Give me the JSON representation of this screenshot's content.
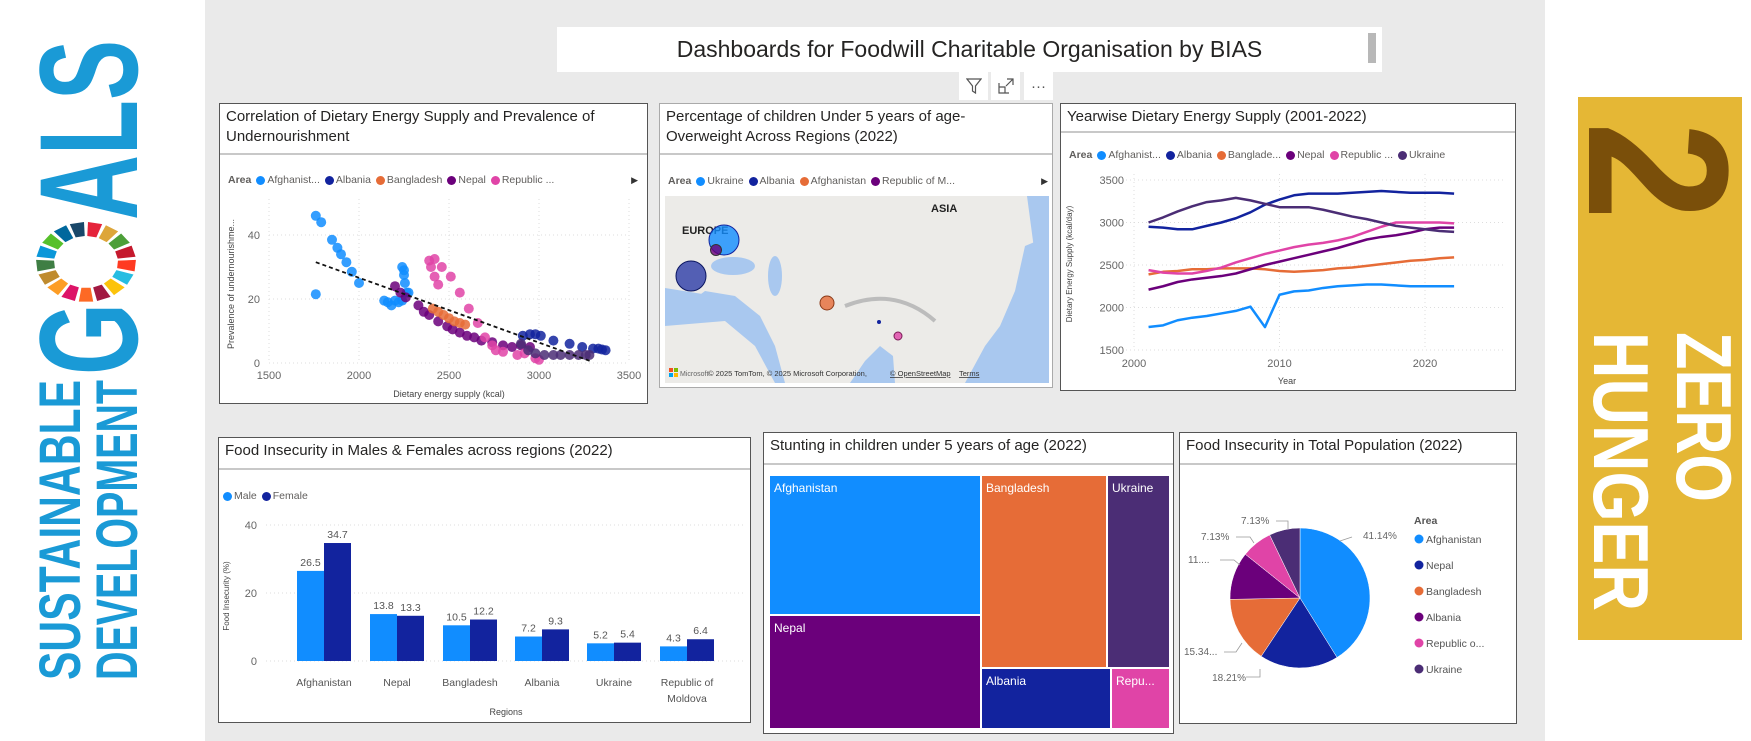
{
  "header": {
    "title": "Dashboards for Foodwill Charitable Organisation by BIAS"
  },
  "toolbar": {
    "filter_icon": "filter-icon",
    "focus_icon": "focus-mode-icon",
    "more_icon": "more-options-icon",
    "more_label": "···"
  },
  "branding": {
    "sdg_logo": {
      "line1": "SUSTAINABLE",
      "line2": "DEVELOPMENT",
      "word": "GOALS",
      "color": "#1A9AD6"
    },
    "goal_badge": {
      "number": "2",
      "line1": "ZERO",
      "line2": "HUNGER",
      "bg": "#E5B735",
      "number_color": "#7A4F0A"
    }
  },
  "colors": {
    "Afghanistan": "#118DFF",
    "Albania": "#12239E",
    "Bangladesh": "#E66C37",
    "Nepal": "#6B007B",
    "Republic of Moldova": "#E044A7",
    "Ukraine": "#4B2D75"
  },
  "scatter": {
    "title": "Correlation of Dietary Energy Supply and Prevalence of Undernourishment",
    "legend_title": "Area",
    "legend": [
      "Afghanist...",
      "Albania",
      "Bangladesh",
      "Nepal",
      "Republic ..."
    ],
    "chart_data": {
      "type": "scatter",
      "xlabel": "Dietary energy supply (kcal)",
      "ylabel": "Prevalence of undernourishme...",
      "xlim": [
        1500,
        3500
      ],
      "ylim": [
        0,
        48
      ],
      "xticks": [
        1500,
        2000,
        2500,
        3000,
        3500
      ],
      "yticks": [
        0,
        20,
        40
      ],
      "grid": true,
      "trendline": [
        [
          1760,
          31.5
        ],
        [
          3290,
          0.5
        ]
      ],
      "series": [
        {
          "area": "Afghanistan",
          "points": [
            [
              1760,
              46
            ],
            [
              1790,
              44
            ],
            [
              1850,
              38.5
            ],
            [
              1880,
              36
            ],
            [
              1900,
              34
            ],
            [
              1930,
              31.5
            ],
            [
              1960,
              28.5
            ],
            [
              2000,
              25
            ],
            [
              1760,
              21.5
            ],
            [
              2140,
              19.5
            ],
            [
              2160,
              19
            ],
            [
              2180,
              18
            ],
            [
              2200,
              19.5
            ],
            [
              2220,
              19
            ],
            [
              2240,
              30
            ],
            [
              2250,
              29
            ],
            [
              2250,
              27.5
            ],
            [
              2255,
              25
            ],
            [
              2265,
              22
            ],
            [
              2240,
              19.5
            ],
            [
              2275,
              22
            ]
          ]
        },
        {
          "area": "Nepal",
          "points": [
            [
              2200,
              24
            ],
            [
              2230,
              22
            ],
            [
              2260,
              20.5
            ],
            [
              2330,
              18
            ],
            [
              2360,
              16
            ],
            [
              2390,
              15
            ],
            [
              2440,
              13
            ],
            [
              2490,
              11.5
            ],
            [
              2520,
              10.5
            ],
            [
              2560,
              9.5
            ],
            [
              2600,
              8.5
            ],
            [
              2640,
              8
            ],
            [
              2680,
              7
            ],
            [
              2740,
              6.5
            ],
            [
              2800,
              5.5
            ],
            [
              2850,
              5
            ],
            [
              2900,
              5.5
            ],
            [
              2950,
              5
            ]
          ]
        },
        {
          "area": "Bangladesh",
          "points": [
            [
              2410,
              17
            ],
            [
              2440,
              16
            ],
            [
              2470,
              15
            ],
            [
              2500,
              14
            ],
            [
              2530,
              13
            ],
            [
              2560,
              12.5
            ],
            [
              2590,
              12
            ]
          ]
        },
        {
          "area": "Republic of Moldova",
          "points": [
            [
              2390,
              32
            ],
            [
              2420,
              32.5
            ],
            [
              2400,
              30
            ],
            [
              2420,
              27
            ],
            [
              2440,
              24.5
            ],
            [
              2460,
              30
            ],
            [
              2510,
              27
            ],
            [
              2560,
              22
            ],
            [
              2610,
              17
            ],
            [
              2660,
              12.5
            ],
            [
              2700,
              8
            ],
            [
              2740,
              5.5
            ],
            [
              2760,
              4
            ],
            [
              2800,
              3.5
            ],
            [
              2880,
              2.5
            ],
            [
              2920,
              3
            ],
            [
              2980,
              1.5
            ],
            [
              3000,
              1
            ]
          ]
        },
        {
          "area": "Albania",
          "points": [
            [
              2910,
              8.5
            ],
            [
              2950,
              9
            ],
            [
              2980,
              9
            ],
            [
              3010,
              8.5
            ],
            [
              3080,
              7
            ],
            [
              3170,
              6
            ],
            [
              3240,
              5
            ],
            [
              3300,
              4.5
            ],
            [
              3330,
              4.5
            ],
            [
              3350,
              4.2
            ],
            [
              3370,
              4
            ]
          ]
        },
        {
          "area": "Ukraine",
          "points": [
            [
              2900,
              6
            ],
            [
              2940,
              4
            ],
            [
              2980,
              3
            ],
            [
              3030,
              2.5
            ],
            [
              3080,
              2.5
            ],
            [
              3120,
              2.5
            ],
            [
              3170,
              2.5
            ],
            [
              3220,
              2.5
            ],
            [
              3260,
              2.5
            ],
            [
              3280,
              2.5
            ]
          ]
        }
      ]
    }
  },
  "map": {
    "title": "Percentage of children Under 5 years of age-Overweight Across Regions (2022)",
    "legend_title": "Area",
    "legend": [
      {
        "label": "Ukraine",
        "color": "#118DFF"
      },
      {
        "label": "Albania",
        "color": "#12239E"
      },
      {
        "label": "Afghanistan",
        "color": "#E66C37"
      },
      {
        "label": "Republic of M...",
        "color": "#6B007B"
      }
    ],
    "labels": {
      "europe": "EUROPE",
      "asia": "ASIA"
    },
    "attribution": "© 2025 TomTom, © 2025 Microsoft Corporation,",
    "osm_link": "© OpenStreetMap",
    "terms_link": "Terms",
    "ms_logo": "Microsoft"
  },
  "line": {
    "title": "Yearwise Dietary Energy Supply (2001-2022)",
    "legend_title": "Area",
    "legend": [
      "Afghanist...",
      "Albania",
      "Banglade...",
      "Nepal",
      "Republic ...",
      "Ukraine"
    ],
    "chart_data": {
      "type": "line",
      "xlabel": "Year",
      "ylabel": "Dietary Energy Supply (kcal/day)",
      "xlim": [
        2000,
        2024
      ],
      "ylim": [
        1500,
        3500
      ],
      "xticks": [
        2000,
        2010,
        2020
      ],
      "yticks": [
        1500,
        2000,
        2500,
        3000,
        3500
      ],
      "grid": true,
      "x": [
        2001,
        2002,
        2003,
        2004,
        2005,
        2006,
        2007,
        2008,
        2009,
        2010,
        2011,
        2012,
        2013,
        2014,
        2015,
        2016,
        2017,
        2018,
        2019,
        2020,
        2021,
        2022
      ],
      "series": [
        {
          "area": "Afghanistan",
          "values": [
            1770,
            1790,
            1850,
            1880,
            1900,
            1930,
            1960,
            2010,
            1770,
            2150,
            2190,
            2200,
            2230,
            2250,
            2260,
            2270,
            2270,
            2260,
            2250,
            2250,
            2250,
            2250
          ]
        },
        {
          "area": "Albania",
          "values": [
            2950,
            2940,
            2920,
            2920,
            2960,
            3000,
            3050,
            3120,
            3210,
            3270,
            3320,
            3340,
            3340,
            3340,
            3350,
            3360,
            3370,
            3360,
            3350,
            3350,
            3350,
            3340
          ]
        },
        {
          "area": "Bangladesh",
          "values": [
            2390,
            2420,
            2430,
            2450,
            2450,
            2460,
            2460,
            2460,
            2450,
            2430,
            2420,
            2430,
            2440,
            2460,
            2470,
            2490,
            2510,
            2530,
            2550,
            2560,
            2580,
            2590
          ]
        },
        {
          "area": "Nepal",
          "values": [
            2210,
            2250,
            2300,
            2330,
            2350,
            2370,
            2400,
            2450,
            2500,
            2540,
            2580,
            2620,
            2660,
            2700,
            2750,
            2800,
            2830,
            2850,
            2880,
            2920,
            2940,
            2940
          ]
        },
        {
          "area": "Republic of Moldova",
          "values": [
            2440,
            2410,
            2400,
            2400,
            2430,
            2470,
            2530,
            2580,
            2630,
            2670,
            2710,
            2740,
            2760,
            2790,
            2830,
            2890,
            2950,
            3000,
            3000,
            3000,
            3000,
            2990
          ]
        },
        {
          "area": "Ukraine",
          "values": [
            3000,
            3060,
            3130,
            3190,
            3240,
            3260,
            3290,
            3260,
            3220,
            3180,
            3180,
            3180,
            3150,
            3110,
            3070,
            3040,
            3000,
            2960,
            2940,
            2920,
            2900,
            2890
          ]
        }
      ]
    }
  },
  "bar": {
    "title": "Food Insecurity in Males & Females across regions (2022)",
    "chart_data": {
      "type": "bar",
      "xlabel": "Regions",
      "ylabel": "Food Insecurity (%)",
      "ylim": [
        0,
        40
      ],
      "yticks": [
        0,
        20,
        40
      ],
      "grid": true,
      "legend": "top-left",
      "categories": [
        "Afghanistan",
        "Nepal",
        "Bangladesh",
        "Albania",
        "Ukraine",
        "Republic of Moldova"
      ],
      "category_lines": [
        [
          "Afghanistan"
        ],
        [
          "Nepal"
        ],
        [
          "Bangladesh"
        ],
        [
          "Albania"
        ],
        [
          "Ukraine"
        ],
        [
          "Republic of",
          "Moldova"
        ]
      ],
      "series": [
        {
          "name": "Male",
          "color": "#118DFF",
          "values": [
            26.5,
            13.8,
            10.5,
            7.2,
            5.2,
            4.3
          ],
          "labels": [
            "26.5",
            "13.8",
            "10.5",
            "7.2",
            "5.2",
            "4.3"
          ]
        },
        {
          "name": "Female",
          "color": "#12239E",
          "values": [
            34.7,
            13.3,
            12.2,
            9.3,
            5.4,
            6.4
          ],
          "labels": [
            "34.7",
            "13.3",
            "12.2",
            "9.3",
            "5.4",
            "6.4"
          ]
        }
      ]
    }
  },
  "treemap": {
    "title": "Stunting in children under 5 years of age (2022)",
    "tiles": [
      {
        "label": "Afghanistan",
        "color": "#118DFF"
      },
      {
        "label": "Nepal",
        "color": "#6B007B"
      },
      {
        "label": "Bangladesh",
        "color": "#E66C37"
      },
      {
        "label": "Ukraine",
        "color": "#4B2D75"
      },
      {
        "label": "Albania",
        "color": "#12239E"
      },
      {
        "label": "Repu...",
        "color": "#E044A7"
      }
    ]
  },
  "pie": {
    "title": "Food Insecurity in Total Population (2022)",
    "legend_title": "Area",
    "chart_data": {
      "type": "pie",
      "legend": "right",
      "slices": [
        {
          "area": "Afghanistan",
          "legend_label": "Afghanistan",
          "value": 41.14,
          "label": "41.14%",
          "color": "#118DFF"
        },
        {
          "area": "Nepal",
          "legend_label": "Nepal",
          "value": 18.21,
          "label": "18.21%",
          "color": "#12239E"
        },
        {
          "area": "Bangladesh",
          "legend_label": "Bangladesh",
          "value": 15.34,
          "label": "15.34...",
          "color": "#E66C37"
        },
        {
          "area": "Albania",
          "legend_label": "Albania",
          "value": 11.05,
          "label": "11....",
          "color": "#6B007B"
        },
        {
          "area": "Republic of Moldova",
          "legend_label": "Republic o...",
          "value": 7.13,
          "label": "7.13%",
          "color": "#E044A7"
        },
        {
          "area": "Ukraine",
          "legend_label": "Ukraine",
          "value": 7.13,
          "label": "7.13%",
          "color": "#4B2D75"
        }
      ]
    }
  }
}
